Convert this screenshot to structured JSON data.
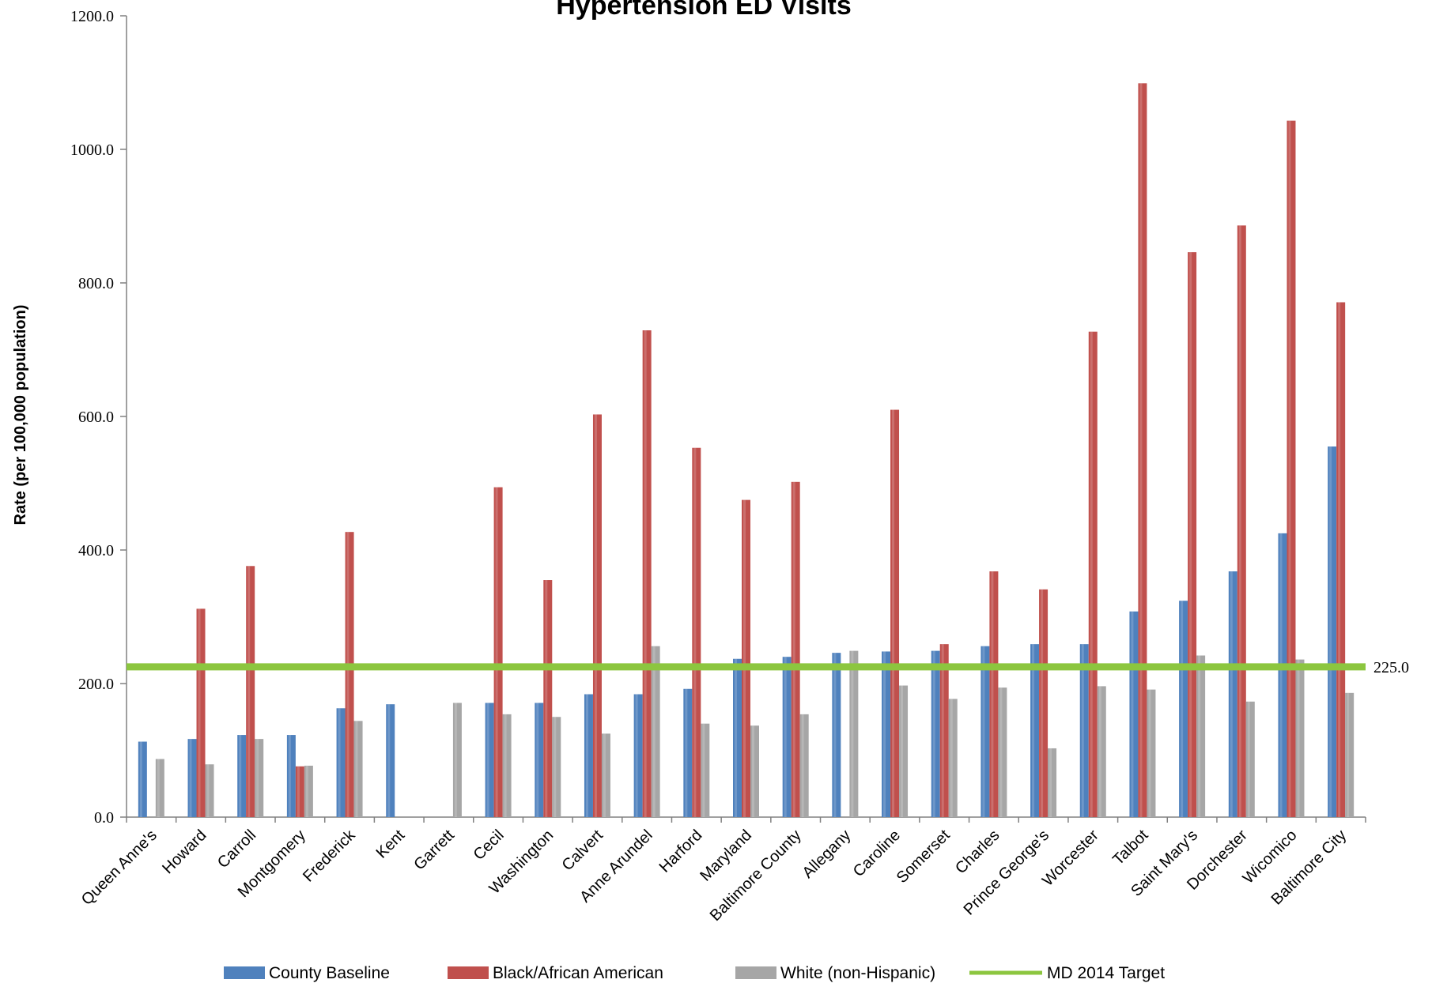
{
  "chart_data": {
    "type": "bar",
    "title": "Hypertension ED Visits",
    "ylabel": "Rate (per 100,000 population)",
    "xlabel": "",
    "ylim": [
      0,
      1200
    ],
    "yticks": [
      "0.0",
      "200.0",
      "400.0",
      "600.0",
      "800.0",
      "1000.0",
      "1200.0"
    ],
    "grid": false,
    "legend_position": "bottom",
    "categories": [
      "Queen Anne's",
      "Howard",
      "Carroll",
      "Montgomery",
      "Frederick",
      "Kent",
      "Garrett",
      "Cecil",
      "Washington",
      "Calvert",
      "Anne Arundel",
      "Harford",
      "Maryland",
      "Baltimore County",
      "Allegany",
      "Caroline",
      "Somerset",
      "Charles",
      "Prince George's",
      "Worcester",
      "Talbot",
      "Saint Mary's",
      "Dorchester",
      "Wicomico",
      "Baltimore City"
    ],
    "series": [
      {
        "name": "County Baseline",
        "color": "#4f81bd",
        "values": [
          113,
          117,
          123,
          123,
          163,
          169,
          null,
          171,
          171,
          184,
          184,
          192,
          237,
          240,
          246,
          248,
          249,
          256,
          259,
          259,
          308,
          324,
          368,
          425,
          555
        ]
      },
      {
        "name": "Black/African American",
        "color": "#c0504d",
        "values": [
          null,
          312,
          376,
          null,
          427,
          null,
          null,
          494,
          355,
          603,
          729,
          553,
          475,
          502,
          null,
          610,
          259,
          368,
          341,
          727,
          1099,
          846,
          886,
          1043,
          771
        ]
      },
      {
        "name": "White (non-Hispanic)",
        "color": "#a6a6a6",
        "values": [
          87,
          79,
          117,
          77,
          144,
          null,
          171,
          154,
          150,
          125,
          256,
          140,
          137,
          154,
          249,
          197,
          177,
          194,
          103,
          196,
          191,
          242,
          173,
          236,
          186
        ]
      }
    ],
    "montgomery_black_value": 76,
    "garrett_baseline_value": 171,
    "target": {
      "name": "MD 2014 Target",
      "value": 225,
      "label": "225.0",
      "color": "#8cc63f"
    }
  }
}
